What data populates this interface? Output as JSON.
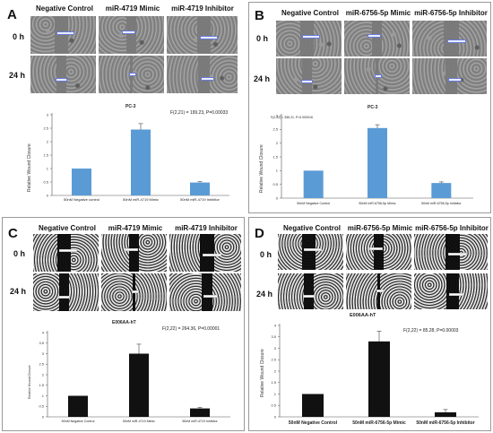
{
  "figure": {
    "panels": [
      {
        "id": "A",
        "letter": "A",
        "columns": [
          "Negative Control",
          "miR-4719 Mimic",
          "miR-4719 Inhibitor"
        ],
        "rows": [
          "0 h",
          "24 h"
        ],
        "image_style": "phase-contrast",
        "chart": {
          "title": "PC-3",
          "stat": "F(2,21) = 199.23, P=0.00033",
          "ylabel": "Relative Wound Closure",
          "bar_color": "#5b9bd5",
          "chart_data": {
            "type": "bar",
            "categories": [
              "50nM Negative control",
              "50nM miR-4719 Mimic",
              "50nM miR-4719 Inhibitor"
            ],
            "values": [
              1.0,
              2.45,
              0.48
            ],
            "errors": [
              0.0,
              0.22,
              0.03
            ],
            "ylim": [
              0,
              3
            ],
            "yticks": [
              "0",
              "0.5",
              "1",
              "1.5",
              "2",
              "2.5",
              "3"
            ],
            "title": "PC-3",
            "ylabel": "Relative Wound Closure"
          }
        }
      },
      {
        "id": "B",
        "letter": "B",
        "columns": [
          "Negative Control",
          "miR-6756-5p Mimic",
          "miR-6756-5p Inhibitor"
        ],
        "rows": [
          "0 h",
          "24 h"
        ],
        "image_style": "phase-contrast",
        "chart": {
          "title": "PC-3",
          "stat": "F(2,22) = 356.21, P=0.000016",
          "ylabel": "Relative Wound Closure",
          "bar_color": "#5b9bd5",
          "chart_data": {
            "type": "bar",
            "categories": [
              "50nM Negative Control",
              "50nM miR-6756-5p Mimic",
              "50nM miR-6756-5p Inhibitor"
            ],
            "values": [
              1.0,
              2.55,
              0.55
            ],
            "errors": [
              0.0,
              0.12,
              0.04
            ],
            "ylim": [
              0,
              3
            ],
            "yticks": [
              "0",
              "0.5",
              "1",
              "1.5",
              "2",
              "2.5",
              "3"
            ],
            "title": "PC-3",
            "ylabel": "Relative Wound Closure"
          }
        }
      },
      {
        "id": "C",
        "letter": "C",
        "columns": [
          "Negative Control",
          "miR-4719 Mimic",
          "miR-4719 Inhibitor"
        ],
        "rows": [
          "0 h",
          "24 h"
        ],
        "image_style": "fluorescence",
        "chart": {
          "title": "E006AA-hT",
          "stat": "F(2,22) = 264.36, P=0.00001",
          "ylabel": "Relative Wound Closure",
          "bar_color": "#111111",
          "chart_data": {
            "type": "bar",
            "categories": [
              "50nM Negative Control",
              "50nM miR-4719 Mimic",
              "50nM miR-4719 Inhibitor"
            ],
            "values": [
              1.0,
              3.0,
              0.4
            ],
            "errors": [
              0.0,
              0.45,
              0.05
            ],
            "ylim": [
              0,
              4
            ],
            "yticks": [
              "0",
              "0.5",
              "1",
              "1.5",
              "2",
              "2.5",
              "3",
              "3.5",
              "4"
            ],
            "title": "E006AA-hT",
            "ylabel": "Relative Wound Closure"
          }
        }
      },
      {
        "id": "D",
        "letter": "D",
        "columns": [
          "Negative Control",
          "miR-6756-5p Mimic",
          "miR-6756-5p Inhibitor"
        ],
        "rows": [
          "0 h",
          "24 h"
        ],
        "image_style": "fluorescence",
        "chart": {
          "title": "E006AA-hT",
          "stat": "F(2,22) = 85.28, P=0.00003",
          "ylabel": "Relative Wound Closure",
          "bar_color": "#111111",
          "chart_data": {
            "type": "bar",
            "categories": [
              "50nM Negative Control",
              "50nM miR-6756-5p Mimic",
              "50nM miR-6756-5p Inhibitor"
            ],
            "values": [
              1.0,
              3.3,
              0.2
            ],
            "errors": [
              0.0,
              0.45,
              0.12
            ],
            "ylim": [
              0,
              4
            ],
            "yticks": [
              "0",
              "0.5",
              "1",
              "1.5",
              "2",
              "2.5",
              "3",
              "3.5",
              "4"
            ],
            "title": "E006AA-hT",
            "ylabel": "Relative Wound Closure"
          }
        }
      }
    ]
  }
}
